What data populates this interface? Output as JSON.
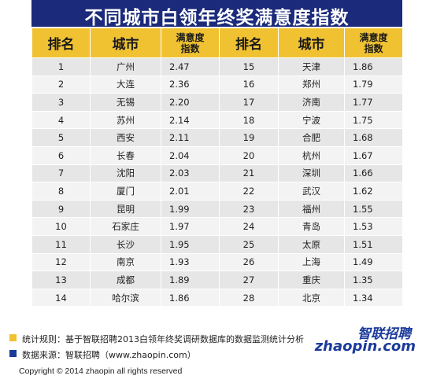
{
  "title": "不同城市白领年终奖满意度指数",
  "columns": [
    "排名",
    "城市",
    "满意度\n指数",
    "排名",
    "城市",
    "满意度\n指数"
  ],
  "rows": [
    {
      "rank_l": "1",
      "city_l": "广州",
      "score_l": "2.47",
      "rank_r": "15",
      "city_r": "天津",
      "score_r": "1.86"
    },
    {
      "rank_l": "2",
      "city_l": "大连",
      "score_l": "2.36",
      "rank_r": "16",
      "city_r": "郑州",
      "score_r": "1.79"
    },
    {
      "rank_l": "3",
      "city_l": "无锡",
      "score_l": "2.20",
      "rank_r": "17",
      "city_r": "济南",
      "score_r": "1.77"
    },
    {
      "rank_l": "4",
      "city_l": "苏州",
      "score_l": "2.14",
      "rank_r": "18",
      "city_r": "宁波",
      "score_r": "1.75"
    },
    {
      "rank_l": "5",
      "city_l": "西安",
      "score_l": "2.11",
      "rank_r": "19",
      "city_r": "合肥",
      "score_r": "1.68"
    },
    {
      "rank_l": "6",
      "city_l": "长春",
      "score_l": "2.04",
      "rank_r": "20",
      "city_r": "杭州",
      "score_r": "1.67"
    },
    {
      "rank_l": "7",
      "city_l": "沈阳",
      "score_l": "2.03",
      "rank_r": "21",
      "city_r": "深圳",
      "score_r": "1.66"
    },
    {
      "rank_l": "8",
      "city_l": "厦门",
      "score_l": "2.01",
      "rank_r": "22",
      "city_r": "武汉",
      "score_r": "1.62"
    },
    {
      "rank_l": "9",
      "city_l": "昆明",
      "score_l": "1.99",
      "rank_r": "23",
      "city_r": "福州",
      "score_r": "1.55"
    },
    {
      "rank_l": "10",
      "city_l": "石家庄",
      "score_l": "1.97",
      "rank_r": "24",
      "city_r": "青岛",
      "score_r": "1.53"
    },
    {
      "rank_l": "11",
      "city_l": "长沙",
      "score_l": "1.95",
      "rank_r": "25",
      "city_r": "太原",
      "score_r": "1.51"
    },
    {
      "rank_l": "12",
      "city_l": "南京",
      "score_l": "1.93",
      "rank_r": "26",
      "city_r": "上海",
      "score_r": "1.49"
    },
    {
      "rank_l": "13",
      "city_l": "成都",
      "score_l": "1.89",
      "rank_r": "27",
      "city_r": "重庆",
      "score_r": "1.35"
    },
    {
      "rank_l": "14",
      "city_l": "哈尔滨",
      "score_l": "1.86",
      "rank_r": "28",
      "city_r": "北京",
      "score_r": "1.34"
    }
  ],
  "notes": {
    "rule": "统计规则：基于智联招聘2013白领年终奖调研数据库的数据监测统计分析",
    "source": "数据来源：智联招聘（www.zhaopin.com）"
  },
  "logo": {
    "cn": "智联招聘",
    "en": "zhaopin.com"
  },
  "copyright": "Copyright  © 2014 zhaopin all rights  reserved",
  "colors": {
    "title_bg": "#1b2a7a",
    "header_bg": "#f0c232",
    "rule_square": "#f0c232",
    "source_square": "#1b3a9a"
  }
}
